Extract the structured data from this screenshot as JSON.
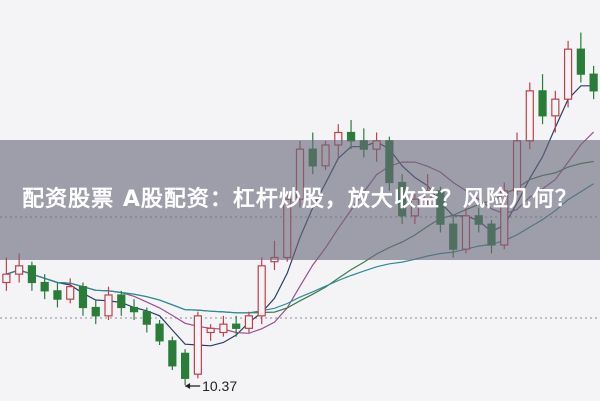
{
  "title": "配资股票 A股配资：杠杆炒股，放大收益？风险几何？",
  "chart_data": {
    "type": "candlestick",
    "annotations": [
      {
        "label": "10.37",
        "at_candle": 15
      }
    ],
    "ohlc": [
      [
        11.6,
        11.9,
        11.5,
        11.7
      ],
      [
        11.7,
        11.95,
        11.6,
        11.8
      ],
      [
        11.8,
        11.85,
        11.5,
        11.6
      ],
      [
        11.6,
        11.7,
        11.4,
        11.5
      ],
      [
        11.5,
        11.6,
        11.3,
        11.4
      ],
      [
        11.4,
        11.65,
        11.35,
        11.55
      ],
      [
        11.55,
        11.6,
        11.2,
        11.3
      ],
      [
        11.3,
        11.4,
        11.1,
        11.2
      ],
      [
        11.2,
        11.55,
        11.15,
        11.45
      ],
      [
        11.45,
        11.5,
        11.2,
        11.3
      ],
      [
        11.3,
        11.4,
        11.15,
        11.25
      ],
      [
        11.25,
        11.3,
        11.0,
        11.1
      ],
      [
        11.1,
        11.15,
        10.85,
        10.9
      ],
      [
        10.9,
        10.95,
        10.55,
        10.6
      ],
      [
        10.75,
        10.8,
        10.37,
        10.45
      ],
      [
        10.5,
        11.25,
        10.45,
        11.2
      ],
      [
        11.0,
        11.1,
        10.9,
        11.05
      ],
      [
        11.0,
        11.2,
        10.95,
        11.1
      ],
      [
        11.1,
        11.2,
        10.95,
        11.05
      ],
      [
        11.05,
        11.25,
        11.0,
        11.2
      ],
      [
        11.2,
        11.9,
        11.1,
        11.8
      ],
      [
        11.85,
        12.1,
        11.75,
        11.9
      ],
      [
        11.9,
        12.7,
        11.85,
        12.6
      ],
      [
        12.6,
        13.3,
        12.5,
        13.2
      ],
      [
        13.2,
        13.4,
        12.9,
        13.0
      ],
      [
        13.0,
        13.3,
        12.95,
        13.25
      ],
      [
        13.25,
        13.5,
        13.1,
        13.4
      ],
      [
        13.4,
        13.55,
        13.2,
        13.3
      ],
      [
        13.3,
        13.45,
        13.1,
        13.2
      ],
      [
        13.2,
        13.4,
        13.05,
        13.3
      ],
      [
        13.3,
        13.35,
        12.7,
        12.8
      ],
      [
        12.8,
        12.9,
        12.3,
        12.4
      ],
      [
        12.4,
        12.7,
        12.3,
        12.6
      ],
      [
        12.6,
        12.9,
        12.5,
        12.7
      ],
      [
        12.7,
        12.75,
        12.2,
        12.3
      ],
      [
        12.3,
        12.4,
        11.9,
        12.0
      ],
      [
        12.0,
        12.5,
        11.95,
        12.4
      ],
      [
        12.4,
        12.5,
        12.2,
        12.3
      ],
      [
        12.3,
        12.35,
        11.95,
        12.05
      ],
      [
        12.05,
        12.8,
        12.0,
        12.7
      ],
      [
        12.7,
        13.4,
        12.65,
        13.3
      ],
      [
        13.3,
        14.0,
        13.2,
        13.9
      ],
      [
        13.9,
        14.1,
        13.5,
        13.6
      ],
      [
        13.6,
        13.9,
        13.4,
        13.8
      ],
      [
        13.8,
        14.5,
        13.7,
        14.4
      ],
      [
        14.4,
        14.6,
        14.0,
        14.1
      ],
      [
        14.1,
        14.2,
        13.8,
        13.9
      ]
    ],
    "moving_averages": [
      {
        "period": 5,
        "color": "#2c3e66"
      },
      {
        "period": 10,
        "color": "#9b4f8f"
      },
      {
        "period": 20,
        "color": "#3f7a4a"
      },
      {
        "period": 30,
        "color": "#2f8a9a"
      }
    ],
    "colors": {
      "up": "#c0404a",
      "down": "#2a7d38",
      "background": "#f4f4f7"
    },
    "grid": false
  }
}
